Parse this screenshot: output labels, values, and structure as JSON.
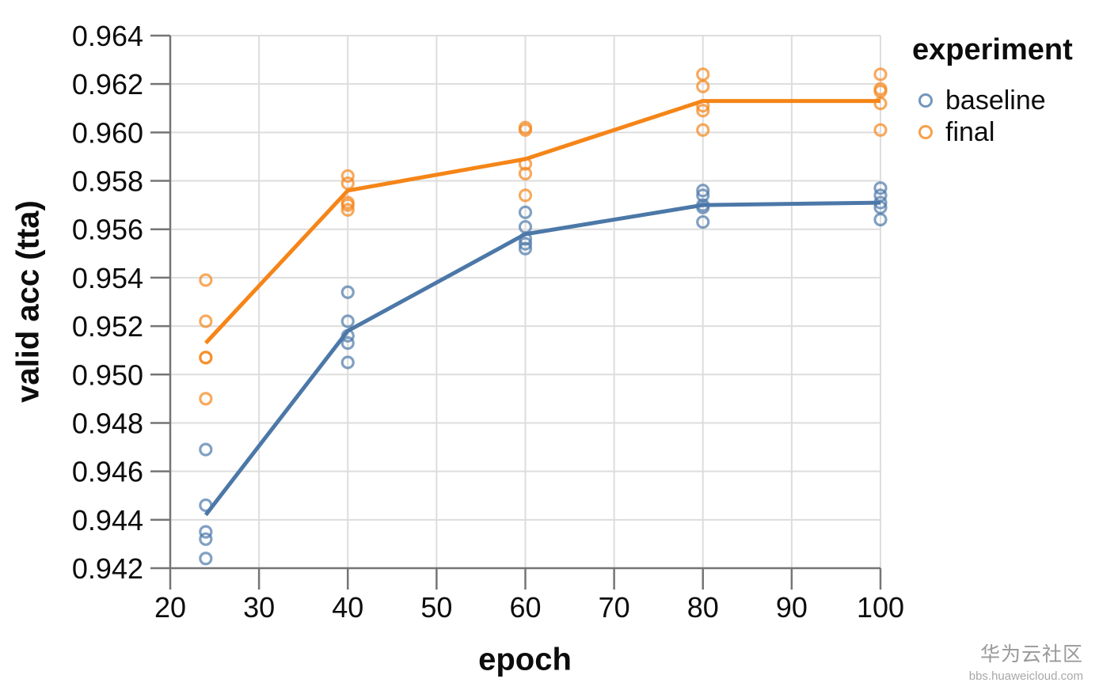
{
  "chart_data": {
    "type": "scatter+line",
    "title": "",
    "xlabel": "epoch",
    "ylabel": "valid acc (tta)",
    "x_domain": [
      20,
      100
    ],
    "y_domain": [
      0.942,
      0.964
    ],
    "x_ticks": [
      "20",
      "30",
      "40",
      "50",
      "60",
      "70",
      "80",
      "90",
      "100"
    ],
    "y_ticks": [
      "0.942",
      "0.944",
      "0.946",
      "0.948",
      "0.950",
      "0.952",
      "0.954",
      "0.956",
      "0.958",
      "0.960",
      "0.962",
      "0.964"
    ],
    "grid": true,
    "legend_position": "top-right-outside",
    "series": [
      {
        "name": "baseline",
        "color": "#4c78a8",
        "line": {
          "x": [
            24,
            40,
            60,
            80,
            100
          ],
          "y": [
            0.9442,
            0.9518,
            0.9558,
            0.957,
            0.9571
          ]
        },
        "points": [
          [
            24,
            0.9469
          ],
          [
            24,
            0.9446
          ],
          [
            24,
            0.9435
          ],
          [
            24,
            0.9432
          ],
          [
            24,
            0.9424
          ],
          [
            40,
            0.9534
          ],
          [
            40,
            0.9522
          ],
          [
            40,
            0.9516
          ],
          [
            40,
            0.9513
          ],
          [
            40,
            0.9505
          ],
          [
            60,
            0.9567
          ],
          [
            60,
            0.9561
          ],
          [
            60,
            0.9556
          ],
          [
            60,
            0.9554
          ],
          [
            60,
            0.9552
          ],
          [
            80,
            0.9576
          ],
          [
            80,
            0.9574
          ],
          [
            80,
            0.957
          ],
          [
            80,
            0.9569
          ],
          [
            80,
            0.9563
          ],
          [
            100,
            0.9577
          ],
          [
            100,
            0.9574
          ],
          [
            100,
            0.9571
          ],
          [
            100,
            0.9569
          ],
          [
            100,
            0.9564
          ]
        ]
      },
      {
        "name": "final",
        "color": "#f58518",
        "line": {
          "x": [
            24,
            40,
            60,
            80,
            100
          ],
          "y": [
            0.9513,
            0.9576,
            0.9589,
            0.9613,
            0.9613
          ]
        },
        "points": [
          [
            24,
            0.9539
          ],
          [
            24,
            0.9522
          ],
          [
            24,
            0.9507
          ],
          [
            24,
            0.9507
          ],
          [
            24,
            0.949
          ],
          [
            40,
            0.9582
          ],
          [
            40,
            0.9579
          ],
          [
            40,
            0.9571
          ],
          [
            40,
            0.957
          ],
          [
            40,
            0.9568
          ],
          [
            60,
            0.9602
          ],
          [
            60,
            0.9601
          ],
          [
            60,
            0.9587
          ],
          [
            60,
            0.9583
          ],
          [
            60,
            0.9574
          ],
          [
            80,
            0.9624
          ],
          [
            80,
            0.9619
          ],
          [
            80,
            0.9611
          ],
          [
            80,
            0.9609
          ],
          [
            80,
            0.9601
          ],
          [
            100,
            0.9624
          ],
          [
            100,
            0.9618
          ],
          [
            100,
            0.9617
          ],
          [
            100,
            0.9612
          ],
          [
            100,
            0.9601
          ]
        ]
      }
    ]
  },
  "legend": {
    "title": "experiment",
    "items": [
      {
        "label": "baseline",
        "color": "#4c78a8"
      },
      {
        "label": "final",
        "color": "#f58518"
      }
    ]
  },
  "axis_style": {
    "grid_color": "#dddddd",
    "domain_color": "#757575",
    "label_color": "#0c0c0c"
  },
  "watermark": {
    "title": "华为云社区",
    "subtitle": "bbs.huaweicloud.com"
  }
}
